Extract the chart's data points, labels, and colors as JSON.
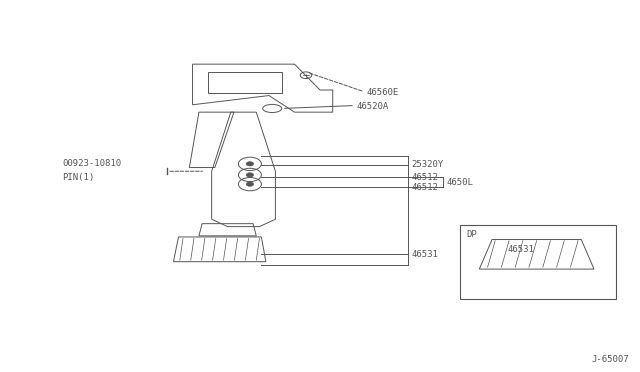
{
  "bg_color": "#ffffff",
  "line_color": "#555555",
  "fig_width": 6.4,
  "fig_height": 3.72,
  "watermark": "J-65007",
  "dp_label": "DP",
  "dp_part": "46531"
}
